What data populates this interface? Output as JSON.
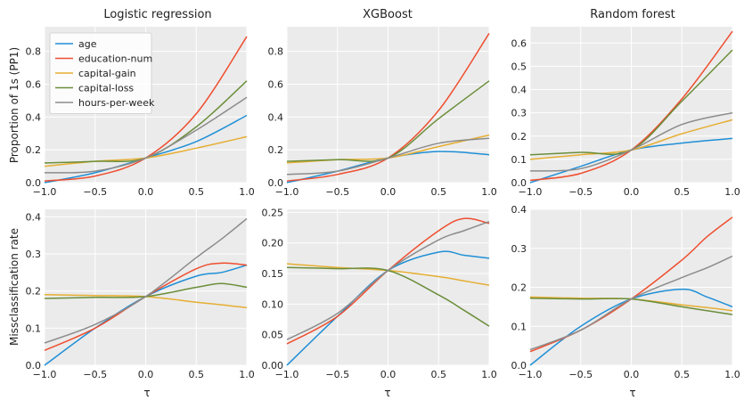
{
  "figure": {
    "titles": [
      "Logistic regression",
      "XGBoost",
      "Random forest"
    ],
    "ylabels": [
      "Proportion of 1s (PP1)",
      "Missclassification rate"
    ],
    "xlabel": "τ"
  },
  "colors": {
    "age": "#1f8fd6",
    "education-num": "#ee4e2f",
    "capital-gain": "#e6ae32",
    "capital-loss": "#6b8e3a",
    "hours-per-week": "#8c8c8c",
    "panel_bg": "#ebebeb",
    "grid": "#ffffff"
  },
  "legend": {
    "placement": "upper-left of first panel",
    "entries": [
      "age",
      "education-num",
      "capital-gain",
      "capital-loss",
      "hours-per-week"
    ]
  },
  "chart_data": [
    {
      "type": "line",
      "title": "Logistic regression",
      "ylabel": "Proportion of 1s (PP1)",
      "xlabel": "",
      "xlim": [
        -1,
        1
      ],
      "ylim": [
        0,
        0.95
      ],
      "xticks": [
        "-1.0",
        "-0.5",
        "0.0",
        "0.5",
        "1.0"
      ],
      "yticks": [
        "0.0",
        "0.2",
        "0.4",
        "0.6",
        "0.8"
      ],
      "x": [
        -1,
        -0.5,
        0,
        0.5,
        1
      ],
      "series": [
        {
          "name": "age",
          "values": [
            0.0,
            0.06,
            0.15,
            0.25,
            0.41
          ]
        },
        {
          "name": "education-num",
          "values": [
            0.01,
            0.04,
            0.15,
            0.42,
            0.89
          ]
        },
        {
          "name": "capital-gain",
          "values": [
            0.1,
            0.13,
            0.15,
            0.21,
            0.28
          ]
        },
        {
          "name": "capital-loss",
          "values": [
            0.12,
            0.13,
            0.15,
            0.34,
            0.62
          ]
        },
        {
          "name": "hours-per-week",
          "values": [
            0.06,
            0.07,
            0.15,
            0.32,
            0.52
          ]
        }
      ]
    },
    {
      "type": "line",
      "title": "XGBoost",
      "ylabel": "",
      "xlabel": "",
      "xlim": [
        -1,
        1
      ],
      "ylim": [
        0,
        0.95
      ],
      "xticks": [
        "-1.0",
        "-0.5",
        "0.0",
        "0.5",
        "1.0"
      ],
      "yticks": [
        "0.0",
        "0.2",
        "0.4",
        "0.6",
        "0.8"
      ],
      "x": [
        -1,
        -0.5,
        0,
        0.5,
        1
      ],
      "series": [
        {
          "name": "age",
          "values": [
            0.0,
            0.07,
            0.15,
            0.19,
            0.17
          ]
        },
        {
          "name": "education-num",
          "values": [
            0.01,
            0.05,
            0.15,
            0.44,
            0.91
          ]
        },
        {
          "name": "capital-gain",
          "values": [
            0.12,
            0.14,
            0.15,
            0.22,
            0.29
          ]
        },
        {
          "name": "capital-loss",
          "values": [
            0.13,
            0.14,
            0.15,
            0.39,
            0.62
          ]
        },
        {
          "name": "hours-per-week",
          "values": [
            0.05,
            0.07,
            0.15,
            0.24,
            0.27
          ]
        }
      ]
    },
    {
      "type": "line",
      "title": "Random forest",
      "ylabel": "",
      "xlabel": "",
      "xlim": [
        -1,
        1
      ],
      "ylim": [
        0,
        0.67
      ],
      "xticks": [
        "-1.0",
        "-0.5",
        "0.0",
        "0.5",
        "1.0"
      ],
      "yticks": [
        "0.0",
        "0.1",
        "0.2",
        "0.3",
        "0.4",
        "0.5",
        "0.6"
      ],
      "x": [
        -1,
        -0.5,
        0,
        0.5,
        1
      ],
      "series": [
        {
          "name": "age",
          "values": [
            0.0,
            0.07,
            0.14,
            0.17,
            0.19
          ]
        },
        {
          "name": "education-num",
          "values": [
            0.01,
            0.04,
            0.14,
            0.36,
            0.65
          ]
        },
        {
          "name": "capital-gain",
          "values": [
            0.1,
            0.12,
            0.14,
            0.21,
            0.27
          ]
        },
        {
          "name": "capital-loss",
          "values": [
            0.12,
            0.13,
            0.14,
            0.35,
            0.57
          ]
        },
        {
          "name": "hours-per-week",
          "values": [
            0.05,
            0.06,
            0.14,
            0.25,
            0.3
          ]
        }
      ]
    },
    {
      "type": "line",
      "title": "",
      "ylabel": "Missclassification rate",
      "xlabel": "τ",
      "xlim": [
        -1,
        1
      ],
      "ylim": [
        0,
        0.42
      ],
      "xticks": [
        "-1.0",
        "-0.5",
        "0.0",
        "0.5",
        "1.0"
      ],
      "yticks": [
        "0.0",
        "0.1",
        "0.2",
        "0.3",
        "0.4"
      ],
      "x": [
        -1,
        -0.5,
        0,
        0.5,
        0.75,
        1
      ],
      "series": [
        {
          "name": "age",
          "values": [
            0.0,
            0.1,
            0.185,
            0.24,
            0.25,
            0.27
          ]
        },
        {
          "name": "education-num",
          "values": [
            0.04,
            0.1,
            0.185,
            0.26,
            0.275,
            0.27
          ]
        },
        {
          "name": "capital-gain",
          "values": [
            0.19,
            0.188,
            0.185,
            0.17,
            0.163,
            0.155
          ]
        },
        {
          "name": "capital-loss",
          "values": [
            0.18,
            0.183,
            0.185,
            0.21,
            0.22,
            0.21
          ]
        },
        {
          "name": "hours-per-week",
          "values": [
            0.06,
            0.11,
            0.185,
            0.29,
            0.34,
            0.395
          ]
        }
      ]
    },
    {
      "type": "line",
      "title": "",
      "ylabel": "",
      "xlabel": "τ",
      "xlim": [
        -1,
        1
      ],
      "ylim": [
        0,
        0.255
      ],
      "xticks": [
        "-1.0",
        "-0.5",
        "0.0",
        "0.5",
        "1.0"
      ],
      "yticks": [
        "0.00",
        "0.05",
        "0.10",
        "0.15",
        "0.20",
        "0.25"
      ],
      "x": [
        -1,
        -0.5,
        0,
        0.5,
        0.75,
        1
      ],
      "series": [
        {
          "name": "age",
          "values": [
            0.0,
            0.08,
            0.155,
            0.185,
            0.18,
            0.175
          ]
        },
        {
          "name": "education-num",
          "values": [
            0.035,
            0.08,
            0.155,
            0.22,
            0.24,
            0.232
          ]
        },
        {
          "name": "capital-gain",
          "values": [
            0.166,
            0.16,
            0.155,
            0.145,
            0.138,
            0.131
          ]
        },
        {
          "name": "capital-loss",
          "values": [
            0.16,
            0.158,
            0.155,
            0.115,
            0.09,
            0.064
          ]
        },
        {
          "name": "hours-per-week",
          "values": [
            0.042,
            0.085,
            0.155,
            0.205,
            0.22,
            0.235
          ]
        }
      ]
    },
    {
      "type": "line",
      "title": "",
      "ylabel": "",
      "xlabel": "τ",
      "xlim": [
        -1,
        1
      ],
      "ylim": [
        0,
        0.4
      ],
      "xticks": [
        "-1.0",
        "-0.5",
        "0.0",
        "0.5",
        "1.0"
      ],
      "yticks": [
        "0.0",
        "0.1",
        "0.2",
        "0.3",
        "0.4"
      ],
      "x": [
        -1,
        -0.5,
        0,
        0.5,
        0.75,
        1
      ],
      "series": [
        {
          "name": "age",
          "values": [
            0.0,
            0.1,
            0.17,
            0.195,
            0.175,
            0.15
          ]
        },
        {
          "name": "education-num",
          "values": [
            0.035,
            0.09,
            0.17,
            0.27,
            0.33,
            0.38
          ]
        },
        {
          "name": "capital-gain",
          "values": [
            0.175,
            0.172,
            0.17,
            0.155,
            0.148,
            0.14
          ]
        },
        {
          "name": "capital-loss",
          "values": [
            0.172,
            0.17,
            0.17,
            0.15,
            0.14,
            0.13
          ]
        },
        {
          "name": "hours-per-week",
          "values": [
            0.04,
            0.09,
            0.17,
            0.225,
            0.25,
            0.28
          ]
        }
      ]
    }
  ]
}
